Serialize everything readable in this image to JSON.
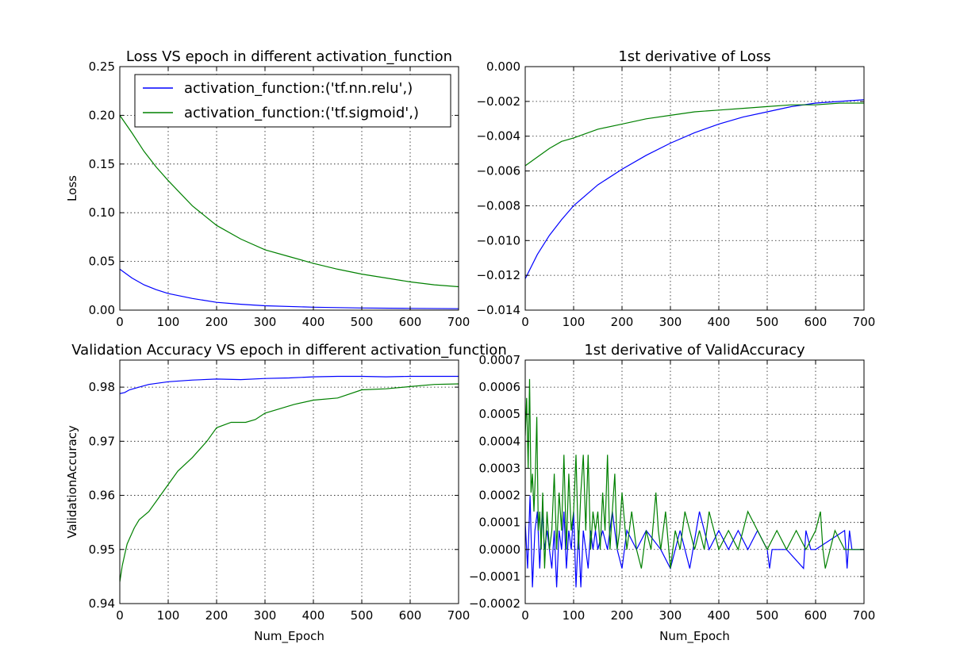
{
  "colors": {
    "relu": "#0000ff",
    "sigmoid": "#008000"
  },
  "chart_data": [
    {
      "type": "line",
      "title": "Loss VS epoch in different activation_function",
      "xlabel": "",
      "ylabel": "Loss",
      "xlim": [
        0,
        700
      ],
      "ylim": [
        0,
        0.25
      ],
      "xticks": [
        0,
        100,
        200,
        300,
        400,
        500,
        600,
        700
      ],
      "xtick_labels": [
        "0",
        "100",
        "200",
        "300",
        "400",
        "500",
        "600",
        "700"
      ],
      "yticks": [
        0,
        0.05,
        0.1,
        0.15,
        0.2,
        0.25
      ],
      "ytick_labels": [
        "0.00",
        "0.05",
        "0.10",
        "0.15",
        "0.20",
        "0.25"
      ],
      "grid": true,
      "legend": {
        "placement": "top-right"
      },
      "series": [
        {
          "name": "activation_function:('tf.nn.relu',)",
          "color": "#0000ff",
          "x": [
            0,
            25,
            50,
            75,
            100,
            150,
            200,
            250,
            300,
            400,
            500,
            600,
            700
          ],
          "y": [
            0.042,
            0.033,
            0.026,
            0.021,
            0.017,
            0.012,
            0.008,
            0.006,
            0.0045,
            0.003,
            0.0022,
            0.0018,
            0.0015
          ]
        },
        {
          "name": "activation_function:('tf.sigmoid',)",
          "color": "#008000",
          "x": [
            0,
            25,
            50,
            75,
            100,
            150,
            200,
            250,
            300,
            350,
            400,
            450,
            500,
            550,
            600,
            650,
            700
          ],
          "y": [
            0.2,
            0.182,
            0.163,
            0.147,
            0.133,
            0.107,
            0.087,
            0.073,
            0.062,
            0.055,
            0.048,
            0.042,
            0.037,
            0.033,
            0.029,
            0.026,
            0.024
          ]
        }
      ]
    },
    {
      "type": "line",
      "title": "1st derivative of Loss",
      "xlabel": "",
      "ylabel": "",
      "xlim": [
        0,
        700
      ],
      "ylim": [
        -0.014,
        0
      ],
      "xticks": [
        0,
        100,
        200,
        300,
        400,
        500,
        600,
        700
      ],
      "xtick_labels": [
        "0",
        "100",
        "200",
        "300",
        "400",
        "500",
        "600",
        "700"
      ],
      "yticks": [
        -0.014,
        -0.012,
        -0.01,
        -0.008,
        -0.006,
        -0.004,
        -0.002,
        0
      ],
      "ytick_labels": [
        "−0.014",
        "−0.012",
        "−0.010",
        "−0.008",
        "−0.006",
        "−0.004",
        "−0.002",
        "0.000"
      ],
      "grid": true,
      "series": [
        {
          "name": "",
          "color": "#0000ff",
          "x": [
            0,
            25,
            50,
            75,
            100,
            150,
            200,
            250,
            300,
            350,
            400,
            450,
            500,
            550,
            600,
            650,
            700
          ],
          "y": [
            -0.0122,
            -0.0108,
            -0.0097,
            -0.0088,
            -0.008,
            -0.0068,
            -0.0059,
            -0.0051,
            -0.0044,
            -0.0038,
            -0.0033,
            -0.0029,
            -0.0026,
            -0.0023,
            -0.0021,
            -0.002,
            -0.0019
          ]
        },
        {
          "name": "",
          "color": "#008000",
          "x": [
            0,
            25,
            50,
            75,
            100,
            150,
            200,
            250,
            300,
            350,
            400,
            450,
            500,
            550,
            600,
            650,
            700
          ],
          "y": [
            -0.0057,
            -0.0052,
            -0.0047,
            -0.0043,
            -0.0041,
            -0.0036,
            -0.0033,
            -0.003,
            -0.0028,
            -0.0026,
            -0.0025,
            -0.0024,
            -0.0023,
            -0.0022,
            -0.0022,
            -0.0021,
            -0.0021
          ]
        }
      ]
    },
    {
      "type": "line",
      "title": "Validation Accuracy VS epoch in different activation_function",
      "xlabel": "Num_Epoch",
      "ylabel": "ValidationAccuracy",
      "xlim": [
        0,
        700
      ],
      "ylim": [
        0.94,
        0.985
      ],
      "xticks": [
        0,
        100,
        200,
        300,
        400,
        500,
        600,
        700
      ],
      "xtick_labels": [
        "0",
        "100",
        "200",
        "300",
        "400",
        "500",
        "600",
        "700"
      ],
      "yticks": [
        0.94,
        0.95,
        0.96,
        0.97,
        0.98
      ],
      "ytick_labels": [
        "0.94",
        "0.95",
        "0.96",
        "0.97",
        "0.98"
      ],
      "grid": true,
      "series": [
        {
          "name": "",
          "color": "#0000ff",
          "x": [
            0,
            10,
            20,
            40,
            60,
            100,
            150,
            200,
            250,
            300,
            350,
            400,
            450,
            500,
            550,
            600,
            700
          ],
          "y": [
            0.9788,
            0.979,
            0.9795,
            0.98,
            0.9805,
            0.981,
            0.9813,
            0.9815,
            0.9814,
            0.9816,
            0.9817,
            0.9819,
            0.982,
            0.982,
            0.9819,
            0.982,
            0.982
          ]
        },
        {
          "name": "",
          "color": "#008000",
          "x": [
            0,
            5,
            10,
            15,
            20,
            30,
            40,
            60,
            80,
            100,
            120,
            150,
            180,
            200,
            230,
            260,
            280,
            300,
            330,
            360,
            400,
            450,
            500,
            550,
            600,
            650,
            700
          ],
          "y": [
            0.944,
            0.947,
            0.949,
            0.951,
            0.952,
            0.954,
            0.9555,
            0.957,
            0.9595,
            0.962,
            0.9645,
            0.967,
            0.97,
            0.9725,
            0.9735,
            0.9735,
            0.974,
            0.9752,
            0.976,
            0.9768,
            0.9776,
            0.978,
            0.9795,
            0.9797,
            0.9801,
            0.9805,
            0.9806
          ]
        }
      ]
    },
    {
      "type": "line",
      "title": "1st derivative of ValidAccuracy",
      "xlabel": "Num_Epoch",
      "ylabel": "",
      "xlim": [
        0,
        700
      ],
      "ylim": [
        -0.0002,
        0.0007
      ],
      "xticks": [
        0,
        100,
        200,
        300,
        400,
        500,
        600,
        700
      ],
      "xtick_labels": [
        "0",
        "100",
        "200",
        "300",
        "400",
        "500",
        "600",
        "700"
      ],
      "yticks": [
        -0.0002,
        -0.0001,
        0,
        0.0001,
        0.0002,
        0.0003,
        0.0004,
        0.0005,
        0.0006,
        0.0007
      ],
      "ytick_labels": [
        "−0.0002",
        "−0.0001",
        "0.0000",
        "0.0001",
        "0.0002",
        "0.0003",
        "0.0004",
        "0.0005",
        "0.0006",
        "0.0007"
      ],
      "grid": true,
      "series": [
        {
          "name": "",
          "color": "#0000ff",
          "x": [
            0,
            5,
            10,
            15,
            20,
            25,
            30,
            35,
            40,
            45,
            50,
            55,
            60,
            65,
            70,
            75,
            80,
            85,
            90,
            95,
            100,
            105,
            110,
            115,
            120,
            125,
            130,
            135,
            140,
            145,
            150,
            160,
            170,
            180,
            190,
            200,
            210,
            230,
            250,
            280,
            300,
            320,
            340,
            360,
            380,
            400,
            420,
            440,
            460,
            480,
            500,
            505,
            510,
            540,
            575,
            580,
            590,
            600,
            660,
            665,
            670,
            675,
            700
          ],
          "y": [
            0.0001,
            -7e-05,
            0.0002,
            -0.00014,
            7e-05,
            0.00014,
            -7e-05,
            0.00014,
            0,
            7e-05,
            0,
            -7e-05,
            7e-05,
            -0.00014,
            7e-05,
            0,
            0.00014,
            -7e-05,
            7e-05,
            0,
            0.00014,
            -0.00014,
            7e-05,
            -0.00014,
            7e-05,
            0,
            -7e-05,
            7e-05,
            0,
            7e-05,
            0,
            7e-05,
            0,
            0.00014,
            0,
            -7e-05,
            7e-05,
            0,
            7e-05,
            0,
            -7e-05,
            7e-05,
            -7e-05,
            0.00014,
            0,
            7e-05,
            0,
            7e-05,
            0,
            7e-05,
            0,
            -7e-05,
            0,
            0,
            -7e-05,
            7e-05,
            0,
            0,
            7e-05,
            -7e-05,
            7e-05,
            0,
            0
          ]
        },
        {
          "name": "",
          "color": "#008000",
          "x": [
            0,
            3,
            6,
            9,
            12,
            15,
            18,
            21,
            24,
            27,
            30,
            33,
            36,
            40,
            45,
            50,
            55,
            60,
            65,
            70,
            75,
            80,
            85,
            90,
            95,
            100,
            105,
            110,
            115,
            120,
            125,
            130,
            135,
            140,
            145,
            150,
            155,
            160,
            165,
            170,
            175,
            180,
            185,
            190,
            195,
            200,
            210,
            220,
            230,
            240,
            250,
            260,
            270,
            275,
            280,
            290,
            300,
            310,
            320,
            330,
            340,
            350,
            360,
            370,
            380,
            390,
            400,
            420,
            440,
            460,
            480,
            500,
            520,
            540,
            560,
            580,
            600,
            610,
            615,
            620,
            640,
            660,
            700
          ],
          "y": [
            0.00042,
            0.00056,
            0.0003,
            0.00063,
            0.00021,
            0.00028,
            0.00014,
            0.00028,
            0.00049,
            7e-05,
            0.00014,
            0,
            0.00021,
            -7e-05,
            0.00014,
            0,
            7e-05,
            0.00028,
            0,
            0.00021,
            7e-05,
            0.00035,
            0,
            0.00028,
            7e-05,
            0.00014,
            0.00035,
            0,
            0.00021,
            0.00035,
            7e-05,
            0.00035,
            0,
            0.00014,
            7e-05,
            0.00014,
            0,
            0.00021,
            7e-05,
            0.00035,
            0,
            0.00014,
            0.00028,
            0,
            7e-05,
            0.00021,
            0,
            0.00014,
            0,
            -7e-05,
            7e-05,
            0,
            0.00021,
            7e-05,
            0,
            0.00014,
            -7e-05,
            7e-05,
            0,
            0.00014,
            7e-05,
            0,
            7e-05,
            0,
            0.00014,
            7e-05,
            0,
            7e-05,
            0,
            0.00014,
            7e-05,
            0,
            7e-05,
            0,
            7e-05,
            0,
            7e-05,
            0.00014,
            0,
            -7e-05,
            7e-05,
            0,
            0
          ]
        }
      ]
    }
  ]
}
